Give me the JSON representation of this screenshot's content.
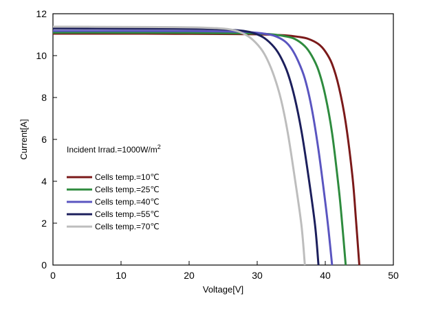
{
  "chart_data": {
    "type": "line",
    "xlabel": "Voltage[V]",
    "ylabel": "Current[A]",
    "xlim": [
      0,
      50
    ],
    "ylim": [
      0,
      12
    ],
    "xticks": [
      "0",
      "10",
      "20",
      "30",
      "40",
      "50"
    ],
    "yticks": [
      "0",
      "2",
      "4",
      "6",
      "8",
      "10",
      "12"
    ],
    "grid": false,
    "legend_position": "center-left",
    "annotation": "Incident Irrad.=1000W/m",
    "annotation_superscript": "2",
    "series": [
      {
        "name": "Cells temp.=10℃",
        "color": "#7b1a1a",
        "x": [
          0,
          10,
          20,
          27,
          31,
          34,
          36,
          37.5,
          39,
          40,
          41,
          42,
          43,
          44,
          44.5,
          45
        ],
        "y": [
          11.05,
          11.05,
          11.04,
          11.03,
          11.01,
          10.97,
          10.9,
          10.8,
          10.55,
          10.2,
          9.6,
          8.5,
          6.8,
          4.2,
          2.2,
          0
        ]
      },
      {
        "name": "Cells temp.=25℃",
        "color": "#2e8b3e",
        "x": [
          0,
          10,
          20,
          27,
          30,
          32,
          34,
          35.5,
          37,
          38,
          39,
          40,
          41,
          42,
          42.5,
          43
        ],
        "y": [
          11.1,
          11.1,
          11.09,
          11.07,
          11.05,
          11.02,
          10.93,
          10.8,
          10.45,
          10.0,
          9.3,
          8.1,
          6.3,
          3.6,
          1.9,
          0
        ]
      },
      {
        "name": "Cells temp.=40℃",
        "color": "#5a55c0",
        "x": [
          0,
          10,
          20,
          26,
          29,
          31,
          32.5,
          34,
          35,
          36,
          37,
          38,
          39,
          40,
          40.5,
          41
        ],
        "y": [
          11.18,
          11.18,
          11.17,
          11.15,
          11.12,
          11.05,
          10.95,
          10.7,
          10.35,
          9.75,
          8.9,
          7.5,
          5.5,
          3.0,
          1.6,
          0
        ]
      },
      {
        "name": "Cells temp.=55℃",
        "color": "#1c1f5c",
        "x": [
          0,
          10,
          20,
          25,
          28,
          29.5,
          31,
          32.5,
          33.5,
          34.5,
          35.5,
          36.5,
          37.5,
          38.5,
          39
        ],
        "y": [
          11.3,
          11.29,
          11.28,
          11.25,
          11.18,
          11.07,
          10.85,
          10.4,
          9.9,
          9.15,
          8.0,
          6.4,
          4.3,
          1.9,
          0
        ]
      },
      {
        "name": "Cells temp.=70℃",
        "color": "#bdbdbd",
        "x": [
          0,
          10,
          20,
          24,
          26,
          27.5,
          29,
          30.5,
          31.5,
          32.5,
          33.5,
          34.5,
          35.5,
          36.5,
          37
        ],
        "y": [
          11.38,
          11.37,
          11.35,
          11.31,
          11.25,
          11.12,
          10.85,
          10.35,
          9.8,
          9.0,
          7.9,
          6.3,
          4.2,
          1.9,
          0
        ]
      }
    ]
  }
}
